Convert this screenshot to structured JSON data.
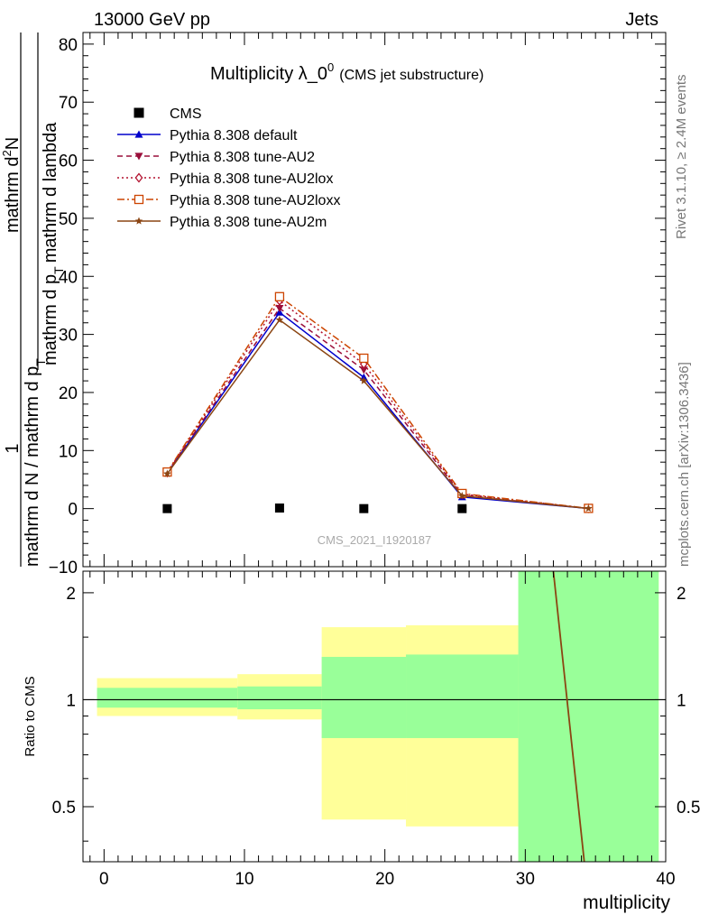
{
  "header": {
    "left": "13000 GeV pp",
    "right": "Jets"
  },
  "side_text": {
    "rivet": "Rivet 3.1.10, ≥ 2.4M events",
    "mcplots": "mcplots.cern.ch [arXiv:1306.3436]"
  },
  "watermark": "CMS_2021_I1920187",
  "chart_data": [
    {
      "type": "line",
      "title": "Multiplicity λ_0",
      "title_sup": "0",
      "title_suffix": "(CMS jet substructure)",
      "ylabel_top": "1",
      "ylabel_frac_top": "mathrm d",
      "ylabel_frac_top2": "2",
      "ylabel_frac_top3": "N",
      "ylabel_frac_bottom": "mathrm d p",
      "ylabel_frac_bottom_sub": "T",
      "ylabel_frac_bottom2": "mathrm d lambda",
      "ylabel_left_num": "1",
      "ylabel_left_den": "mathrm d N / mathrm d p",
      "ylabel_left_den_sub": "T",
      "ylim": [
        -10,
        82
      ],
      "xlim": [
        -1.5,
        40
      ],
      "yticks": [
        -10,
        0,
        10,
        20,
        30,
        40,
        50,
        60,
        70,
        80
      ],
      "x": [
        4.5,
        12.5,
        18.5,
        25.5,
        34.5
      ],
      "legend_position": "top-left",
      "series": [
        {
          "name": "CMS",
          "color": "#000000",
          "marker": "square",
          "line": "none",
          "values": [
            0,
            0.1,
            0,
            0,
            null
          ]
        },
        {
          "name": "Pythia 8.308 default",
          "color": "#0000cc",
          "marker": "triangle-up",
          "line": "solid",
          "values": [
            6.1,
            33.8,
            22.6,
            2.0,
            0.03
          ]
        },
        {
          "name": "Pythia 8.308 tune-AU2",
          "color": "#9a0e3a",
          "marker": "triangle-down",
          "line": "dashed",
          "values": [
            6.2,
            34.5,
            23.9,
            2.3,
            0.04
          ]
        },
        {
          "name": "Pythia 8.308 tune-AU2lox",
          "color": "#b2102e",
          "marker": "diamond-open",
          "line": "dotted",
          "values": [
            6.2,
            35.8,
            24.9,
            2.5,
            0.04
          ]
        },
        {
          "name": "Pythia 8.308 tune-AU2loxx",
          "color": "#cc4400",
          "marker": "square-open",
          "line": "dashdot",
          "values": [
            6.3,
            36.5,
            25.9,
            2.6,
            0.04
          ]
        },
        {
          "name": "Pythia 8.308 tune-AU2m",
          "color": "#8b4513",
          "marker": "star",
          "line": "solid",
          "values": [
            6.0,
            32.5,
            22.0,
            2.2,
            0.03
          ]
        }
      ]
    },
    {
      "type": "area",
      "ylabel": "Ratio to CMS",
      "xlabel": "multiplicity",
      "ylim": [
        0.35,
        2.3
      ],
      "yticks": [
        0.5,
        1,
        2
      ],
      "xticks": [
        0,
        10,
        20,
        30,
        40
      ],
      "bands": [
        {
          "x0": -0.5,
          "x1": 9.5,
          "green": [
            0.95,
            1.08
          ],
          "yellow": [
            0.9,
            1.15
          ]
        },
        {
          "x0": 9.5,
          "x1": 15.5,
          "green": [
            0.94,
            1.09
          ],
          "yellow": [
            0.88,
            1.18
          ]
        },
        {
          "x0": 15.5,
          "x1": 21.5,
          "green": [
            0.78,
            1.32
          ],
          "yellow": [
            0.46,
            1.6
          ]
        },
        {
          "x0": 21.5,
          "x1": 29.5,
          "green": [
            0.78,
            1.34
          ],
          "yellow": [
            0.44,
            1.62
          ]
        },
        {
          "x0": 29.5,
          "x1": 39.5,
          "green": [
            0.35,
            2.3
          ],
          "yellow": [
            0.35,
            2.3
          ]
        }
      ],
      "reference": 1,
      "ratio_line": {
        "color": "#8b4513",
        "points": [
          [
            32.0,
            2.3
          ],
          [
            34.2,
            0.35
          ]
        ]
      }
    }
  ],
  "colors": {
    "green_band": "#99ff99",
    "yellow_band": "#ffff99"
  }
}
